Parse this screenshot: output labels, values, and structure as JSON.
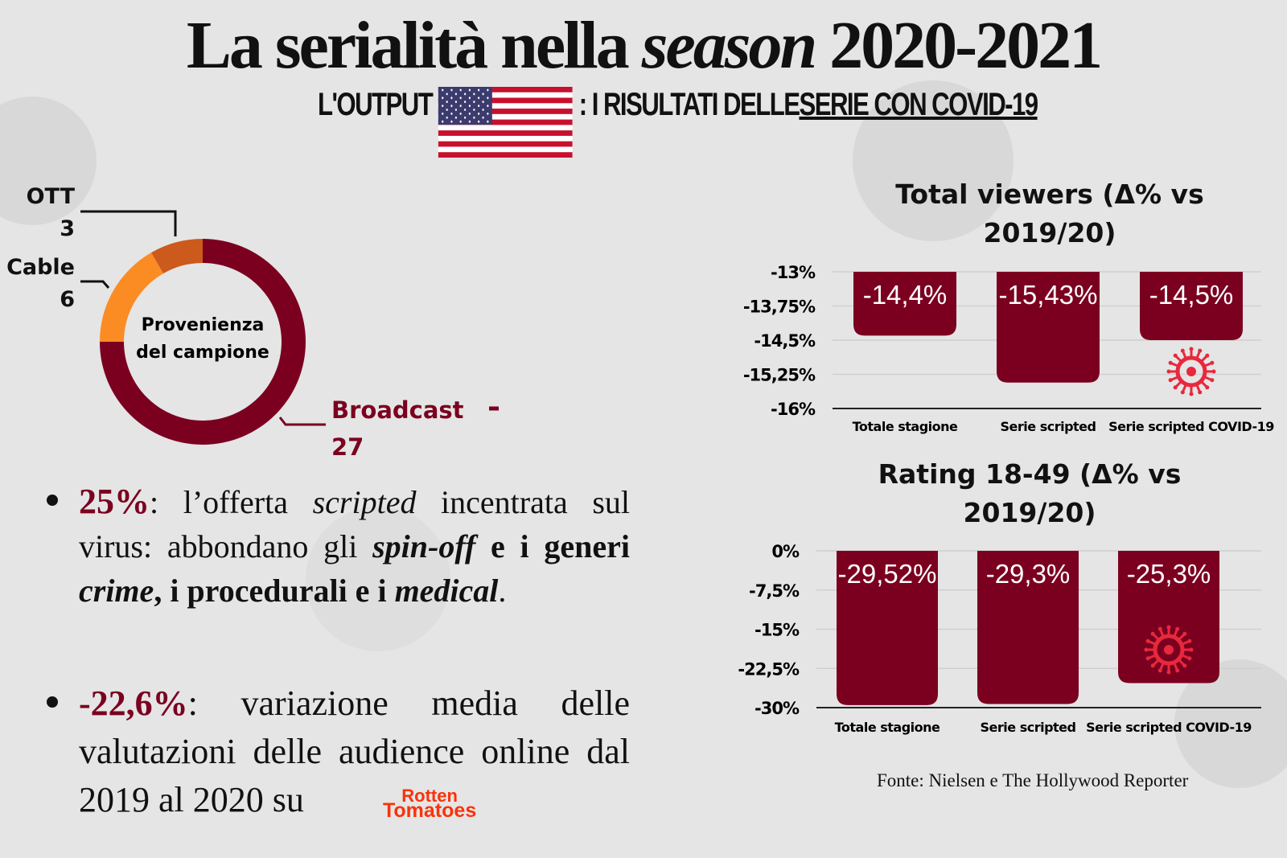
{
  "title": {
    "part1": "La serialità nella ",
    "italic": "season",
    "part2": " 2020-2021"
  },
  "subtitle": {
    "prefix": "L'OUTPUT",
    "flag_icon": "us-flag-icon",
    "middle": ": I RISULTATI DELLE ",
    "underlined": "SERIE CON COVID-19"
  },
  "colors": {
    "broadcast": "#7b0020",
    "cable": "#fb8c24",
    "ott": "#cc5a1c",
    "bar": "#7b0020",
    "virus": "#e8283c",
    "rotten": "#fa320a"
  },
  "donut": {
    "center_label": [
      "Provenienza",
      "del campione"
    ],
    "segments": [
      {
        "name": "Broadcast",
        "value": 27
      },
      {
        "name": "Cable",
        "value": 6
      },
      {
        "name": "OTT",
        "value": 3
      }
    ]
  },
  "bullets": [
    {
      "highlight": "25%",
      "text_html": ": l’offerta <i>scripted</i> incentrata sul virus: abbondano gli <b><i>spin-off</i></b> <b>e i generi <i>crime</i>, i procedurali e i <i>medical</i></b>."
    },
    {
      "highlight": "-22,6%",
      "text": ": variazione media delle valutazioni delle audience online dal 2019 al 2020 su"
    }
  ],
  "rotten_tomatoes_logo": [
    "Rotten",
    "Tomatoes"
  ],
  "chart_data": [
    {
      "type": "bar",
      "title": "Total viewers (Δ% vs 2019/20)",
      "categories": [
        "Totale stagione",
        "Serie scripted",
        "Serie scripted COVID-19"
      ],
      "values": [
        -14.4,
        -15.43,
        -14.5
      ],
      "data_labels": [
        "-14,4%",
        "-15,43%",
        "-14,5%"
      ],
      "ylim": [
        -16,
        -13
      ],
      "yticks": [
        "-13%",
        "-13,75%",
        "-14,5%",
        "-15,25%",
        "-16%"
      ],
      "grid": true,
      "covid_icon_on": "Serie scripted COVID-19"
    },
    {
      "type": "bar",
      "title": "Rating 18-49 (Δ% vs 2019/20)",
      "categories": [
        "Totale stagione",
        "Serie scripted",
        "Serie scripted COVID-19"
      ],
      "values": [
        -29.52,
        -29.3,
        -25.3
      ],
      "data_labels": [
        "-29,52%",
        "-29,3%",
        "-25,3%"
      ],
      "ylim": [
        -30,
        0
      ],
      "yticks": [
        "0%",
        "-7,5%",
        "-15%",
        "-22,5%",
        "-30%"
      ],
      "grid": true,
      "covid_icon_on": "Serie scripted COVID-19"
    }
  ],
  "source": "Fonte: Nielsen e The Hollywood Reporter"
}
